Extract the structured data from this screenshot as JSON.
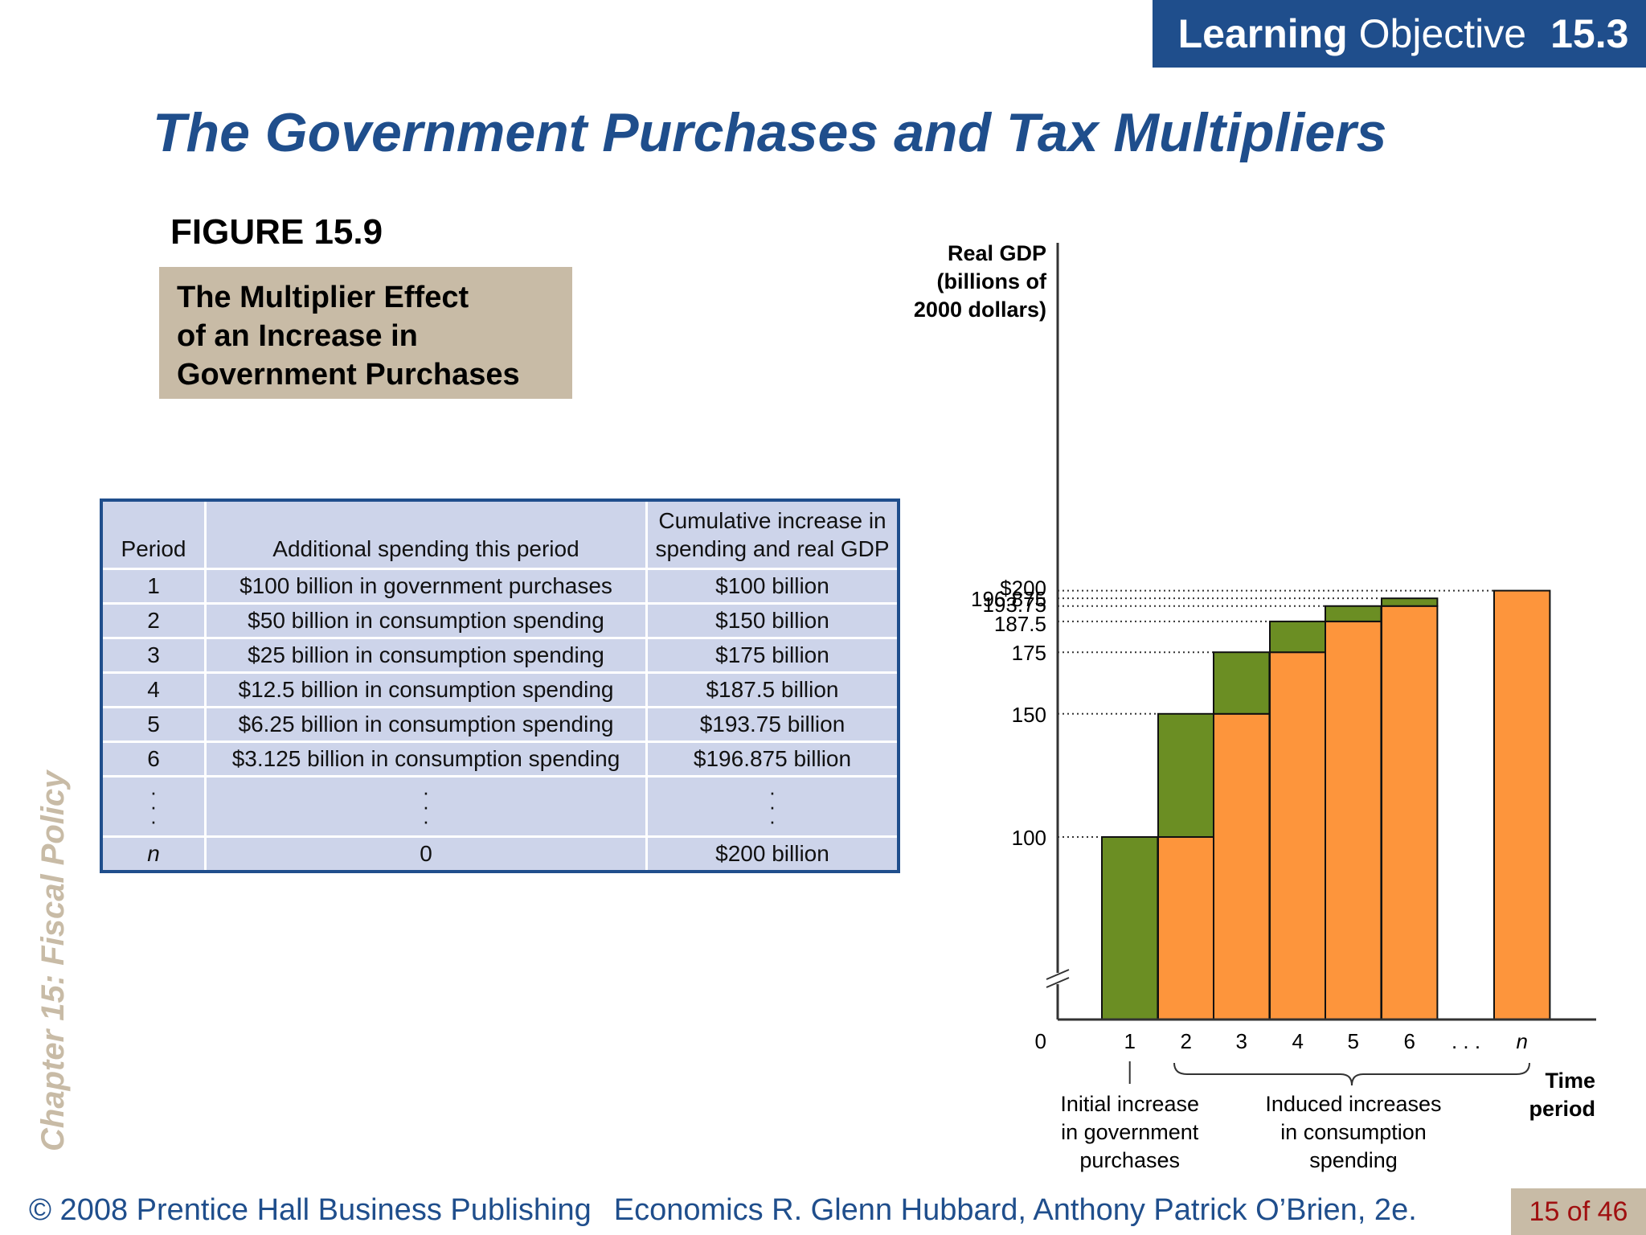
{
  "header": {
    "badge_bold": "Learning",
    "badge_regular": "Objective",
    "badge_number": "15.3",
    "title": "The Government Purchases and Tax Multipliers"
  },
  "figure": {
    "label": "FIGURE 15.9",
    "caption_lines": [
      "The Multiplier Effect",
      "of an Increase in",
      "Government Purchases"
    ]
  },
  "side_label": "Chapter 15:  Fiscal Policy",
  "table": {
    "headers": [
      "Period",
      "Additional spending this period",
      "Cumulative increase in spending and real GDP"
    ],
    "rows": [
      [
        "1",
        "$100 billion in government purchases",
        "$100 billion"
      ],
      [
        "2",
        "$50 billion in consumption spending",
        "$150 billion"
      ],
      [
        "3",
        "$25 billion in consumption spending",
        "$175 billion"
      ],
      [
        "4",
        "$12.5 billion in consumption spending",
        "$187.5 billion"
      ],
      [
        "5",
        "$6.25 billion in consumption spending",
        "$193.75 billion"
      ],
      [
        "6",
        "$3.125 billion in consumption spending",
        "$196.875 billion"
      ]
    ],
    "final_row": [
      "n",
      "0",
      "$200 billion"
    ]
  },
  "colors": {
    "brand_blue": "#1f4e8c",
    "caption_tan": "#c8bba6",
    "table_fill": "#cdd4ea",
    "bar_green": "#6b8e23",
    "bar_orange": "#fd953c"
  },
  "chart_data": {
    "type": "bar",
    "stacked": true,
    "y_axis_title": [
      "Real GDP",
      "(billions of",
      "2000 dollars)"
    ],
    "x_axis_title": [
      "Time",
      "period"
    ],
    "y_ticks": [
      "0",
      "100",
      "150",
      "175",
      "187.5",
      "193.75",
      "196.875",
      "$200"
    ],
    "y_tick_values": [
      0,
      100,
      150,
      175,
      187.5,
      193.75,
      196.875,
      200
    ],
    "y_axis_break": true,
    "categories": [
      "1",
      "2",
      "3",
      "4",
      "5",
      "6",
      "n"
    ],
    "ellipsis_label": ". . .",
    "base_values": [
      0,
      100,
      150,
      175,
      187.5,
      193.75,
      200
    ],
    "increment_values": [
      100,
      50,
      25,
      12.5,
      6.25,
      3.125,
      0
    ],
    "cumulative_values": [
      100,
      150,
      175,
      187.5,
      193.75,
      196.875,
      200
    ],
    "annotations": {
      "initial": [
        "Initial increase",
        "in government",
        "purchases"
      ],
      "induced": [
        "Induced increases",
        "in consumption",
        "spending"
      ]
    }
  },
  "footer": {
    "copyright": "© 2008 Prentice Hall Business Publishing",
    "book": "Economics  R. Glenn Hubbard, Anthony Patrick O’Brien, 2e.",
    "page": "15 of 46"
  }
}
